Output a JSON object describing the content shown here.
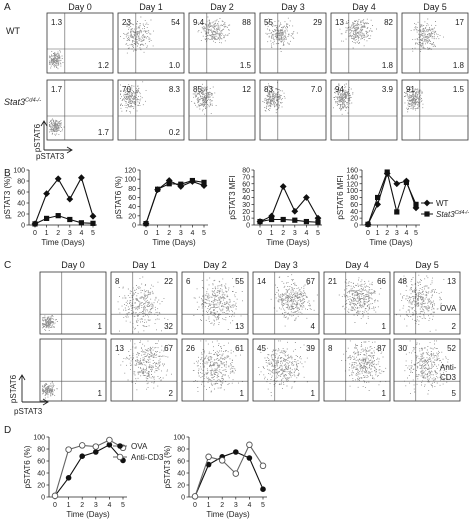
{
  "panels": {
    "a": {
      "letter": "A",
      "days": [
        "Day 0",
        "Day 1",
        "Day 2",
        "Day 3",
        "Day 4",
        "Day 5"
      ],
      "rows": [
        {
          "label": "WT",
          "label_sup": "",
          "quadrants": [
            {
              "ul": "1.3",
              "ur": "",
              "lr": "1.2"
            },
            {
              "ul": "23",
              "ur": "54",
              "lr": "1.0"
            },
            {
              "ul": "9.4",
              "ur": "88",
              "lr": "1.5"
            },
            {
              "ul": "55",
              "ur": "29",
              "lr": ""
            },
            {
              "ul": "13",
              "ur": "82",
              "lr": "1.8"
            },
            {
              "ul": "",
              "ur": "17",
              "lr": "1.8"
            }
          ]
        },
        {
          "label": "Stat3",
          "label_sup": "Cd4-/-",
          "quadrants": [
            {
              "ul": "1.7",
              "ur": "",
              "lr": "1.7"
            },
            {
              "ul": "70",
              "ur": "8.3",
              "lr": "0.2"
            },
            {
              "ul": "85",
              "ur": "12",
              "lr": ""
            },
            {
              "ul": "83",
              "ur": "7.0",
              "lr": ""
            },
            {
              "ul": "94",
              "ur": "3.9",
              "lr": ""
            },
            {
              "ul": "91",
              "ur": "1.5",
              "lr": ""
            }
          ]
        }
      ],
      "axis_y": "pSTAT6",
      "axis_x": "pSTAT3"
    },
    "b": {
      "letter": "B",
      "legend": [
        {
          "name": "WT",
          "name_sup": "",
          "marker": "diamond"
        },
        {
          "name": "Stat3",
          "name_sup": "Cd4-/-",
          "marker": "square"
        }
      ]
    },
    "c": {
      "letter": "C",
      "days": [
        "Day 0",
        "Day 1",
        "Day 2",
        "Day 3",
        "Day 4",
        "Day 5"
      ],
      "rows": [
        {
          "side_label": "OVA",
          "quadrants": [
            {
              "ul": "",
              "ur": "",
              "lr": "1"
            },
            {
              "ul": "8",
              "ur": "22",
              "lr": "32"
            },
            {
              "ul": "6",
              "ur": "55",
              "lr": "13"
            },
            {
              "ul": "14",
              "ur": "67",
              "lr": "4"
            },
            {
              "ul": "21",
              "ur": "66",
              "lr": "1"
            },
            {
              "ul": "48",
              "ur": "13",
              "lr": "2"
            }
          ]
        },
        {
          "side_label": "Anti-\nCD3",
          "quadrants": [
            {
              "ul": "",
              "ur": "",
              "lr": "1"
            },
            {
              "ul": "13",
              "ur": "67",
              "lr": "2"
            },
            {
              "ul": "26",
              "ur": "61",
              "lr": "1"
            },
            {
              "ul": "45",
              "ur": "39",
              "lr": "1"
            },
            {
              "ul": "8",
              "ur": "87",
              "lr": "1"
            },
            {
              "ul": "30",
              "ur": "52",
              "lr": "5"
            }
          ]
        }
      ],
      "axis_y": "pSTAT6",
      "axis_x": "pSTAT3"
    },
    "d": {
      "letter": "D",
      "legend": [
        {
          "name": "OVA",
          "marker": "filled-circle"
        },
        {
          "name": "Anti-CD3",
          "marker": "open-circle"
        }
      ]
    }
  },
  "chart_data": [
    {
      "type": "line",
      "panel": "B1",
      "xlabel": "Time (Days)",
      "ylabel": "pSTAT3 (%)",
      "x": [
        0,
        1,
        2,
        3,
        4,
        5
      ],
      "xticks": [
        0,
        1,
        2,
        3,
        4,
        5
      ],
      "ylim": [
        0,
        100
      ],
      "yticks": [
        0,
        20,
        40,
        60,
        80,
        100
      ],
      "series": [
        {
          "name": "WT",
          "marker": "diamond",
          "values": [
            2,
            57,
            84,
            47,
            86,
            16
          ]
        },
        {
          "name": "Stat3 Cd4-/-",
          "marker": "square",
          "values": [
            2,
            12,
            17,
            10,
            4,
            3
          ]
        }
      ]
    },
    {
      "type": "line",
      "panel": "B2",
      "xlabel": "Time (Days)",
      "ylabel": "pSTAT6 (%)",
      "x": [
        0,
        1,
        2,
        3,
        4,
        5
      ],
      "xticks": [
        0,
        1,
        2,
        3,
        4,
        5
      ],
      "ylim": [
        0,
        120
      ],
      "yticks": [
        0,
        20,
        40,
        60,
        80,
        100,
        120
      ],
      "series": [
        {
          "name": "WT",
          "marker": "diamond",
          "values": [
            3,
            77,
            97,
            84,
            95,
            86
          ]
        },
        {
          "name": "Stat3 Cd4-/-",
          "marker": "square",
          "values": [
            3,
            78,
            90,
            89,
            97,
            93
          ]
        }
      ]
    },
    {
      "type": "line",
      "panel": "B3",
      "xlabel": "Time (Days)",
      "ylabel": "pSTAT3 MFI",
      "x": [
        0,
        1,
        2,
        3,
        4,
        5
      ],
      "xticks": [
        0,
        1,
        2,
        3,
        4,
        5
      ],
      "ylim": [
        0,
        80
      ],
      "yticks": [
        0,
        10,
        20,
        30,
        40,
        50,
        60,
        70,
        80
      ],
      "series": [
        {
          "name": "WT",
          "marker": "diamond",
          "values": [
            5,
            13,
            56,
            20,
            40,
            10
          ]
        },
        {
          "name": "Stat3 Cd4-/-",
          "marker": "square",
          "values": [
            5,
            8,
            8,
            7,
            5,
            4
          ]
        }
      ]
    },
    {
      "type": "line",
      "panel": "B4",
      "xlabel": "Time (Days)",
      "ylabel": "pSTAT6 MFI",
      "x": [
        0,
        1,
        2,
        3,
        4,
        5
      ],
      "xticks": [
        0,
        1,
        2,
        3,
        4,
        5
      ],
      "ylim": [
        0,
        160
      ],
      "yticks": [
        0,
        20,
        40,
        60,
        80,
        100,
        120,
        140,
        160
      ],
      "series": [
        {
          "name": "WT",
          "marker": "diamond",
          "values": [
            2,
            60,
            150,
            120,
            128,
            50
          ]
        },
        {
          "name": "Stat3 Cd4-/-",
          "marker": "square",
          "values": [
            2,
            80,
            154,
            38,
            124,
            60
          ]
        }
      ]
    },
    {
      "type": "line",
      "panel": "D1",
      "xlabel": "Time (Days)",
      "ylabel": "pSTAT6 (%)",
      "x": [
        0,
        1,
        2,
        3,
        4,
        5
      ],
      "xticks": [
        0,
        1,
        2,
        3,
        4,
        5
      ],
      "ylim": [
        0,
        100
      ],
      "yticks": [
        0,
        20,
        40,
        60,
        80,
        100
      ],
      "series": [
        {
          "name": "OVA",
          "marker": "filled-circle",
          "values": [
            2,
            32,
            68,
            75,
            87,
            61
          ]
        },
        {
          "name": "Anti-CD3",
          "marker": "open-circle",
          "values": [
            2,
            79,
            86,
            84,
            95,
            82
          ]
        }
      ]
    },
    {
      "type": "line",
      "panel": "D2",
      "xlabel": "Time (Days)",
      "ylabel": "pSTAT3 (%)",
      "x": [
        0,
        1,
        2,
        3,
        4,
        5
      ],
      "xticks": [
        0,
        1,
        2,
        3,
        4,
        5
      ],
      "ylim": [
        0,
        100
      ],
      "yticks": [
        0,
        20,
        40,
        60,
        80,
        100
      ],
      "series": [
        {
          "name": "OVA",
          "marker": "filled-circle",
          "values": [
            1,
            54,
            67,
            75,
            65,
            13
          ]
        },
        {
          "name": "Anti-CD3",
          "marker": "open-circle",
          "values": [
            1,
            67,
            61,
            39,
            87,
            52
          ]
        }
      ]
    }
  ]
}
